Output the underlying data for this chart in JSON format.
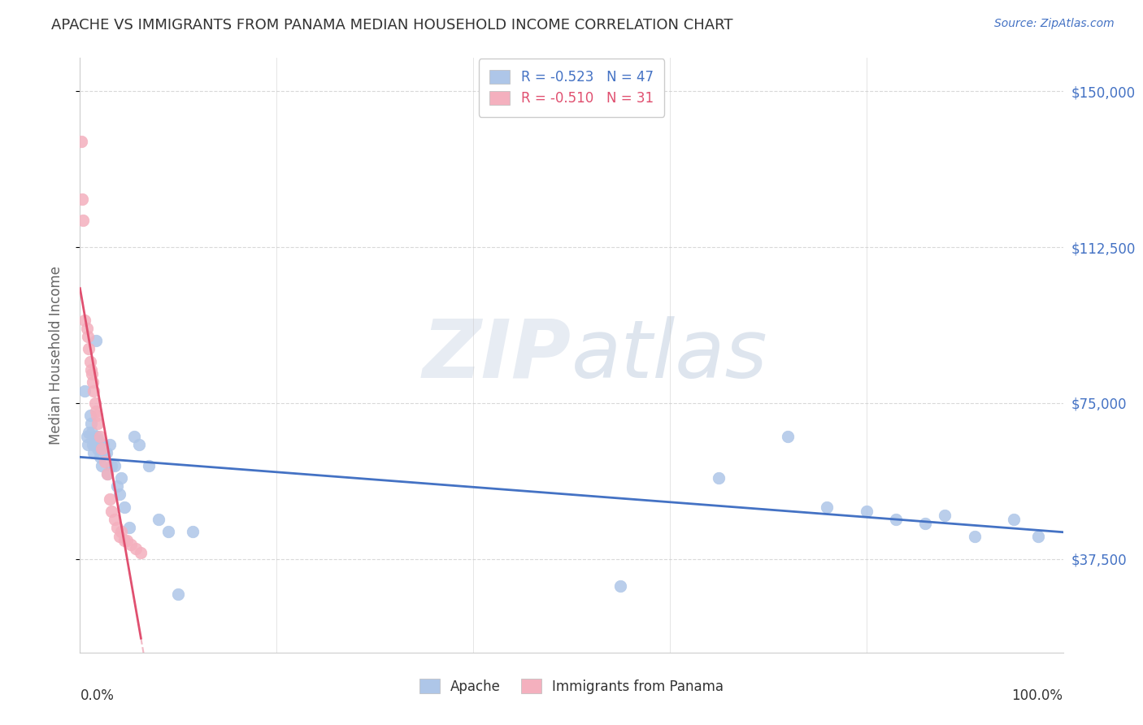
{
  "title": "APACHE VS IMMIGRANTS FROM PANAMA MEDIAN HOUSEHOLD INCOME CORRELATION CHART",
  "source": "Source: ZipAtlas.com",
  "ylabel": "Median Household Income",
  "ytick_labels": [
    "$37,500",
    "$75,000",
    "$112,500",
    "$150,000"
  ],
  "ytick_values": [
    37500,
    75000,
    112500,
    150000
  ],
  "ymin": 15000,
  "ymax": 158000,
  "xmin": 0.0,
  "xmax": 1.0,
  "apache_x": [
    0.005,
    0.007,
    0.008,
    0.009,
    0.01,
    0.011,
    0.012,
    0.013,
    0.014,
    0.015,
    0.016,
    0.017,
    0.018,
    0.019,
    0.02,
    0.021,
    0.022,
    0.024,
    0.025,
    0.027,
    0.028,
    0.03,
    0.032,
    0.035,
    0.038,
    0.04,
    0.042,
    0.045,
    0.05,
    0.055,
    0.06,
    0.07,
    0.08,
    0.09,
    0.1,
    0.115,
    0.55,
    0.65,
    0.72,
    0.76,
    0.8,
    0.83,
    0.86,
    0.88,
    0.91,
    0.95,
    0.975
  ],
  "apache_y": [
    78000,
    67000,
    65000,
    68000,
    72000,
    70000,
    68000,
    65000,
    63000,
    65000,
    90000,
    67000,
    64000,
    66000,
    62000,
    64000,
    60000,
    65000,
    63000,
    63000,
    58000,
    65000,
    60000,
    60000,
    55000,
    53000,
    57000,
    50000,
    45000,
    67000,
    65000,
    60000,
    47000,
    44000,
    29000,
    44000,
    31000,
    57000,
    67000,
    50000,
    49000,
    47000,
    46000,
    48000,
    43000,
    47000,
    43000
  ],
  "panama_x": [
    0.001,
    0.002,
    0.003,
    0.005,
    0.007,
    0.008,
    0.009,
    0.01,
    0.011,
    0.012,
    0.013,
    0.014,
    0.015,
    0.016,
    0.017,
    0.018,
    0.02,
    0.022,
    0.025,
    0.028,
    0.03,
    0.032,
    0.035,
    0.038,
    0.04,
    0.042,
    0.045,
    0.048,
    0.052,
    0.057,
    0.062
  ],
  "panama_y": [
    138000,
    124000,
    119000,
    95000,
    93000,
    91000,
    88000,
    85000,
    83000,
    82000,
    80000,
    78000,
    75000,
    73000,
    72000,
    70000,
    67000,
    64000,
    61000,
    58000,
    52000,
    49000,
    47000,
    45000,
    43000,
    44000,
    42000,
    42000,
    41000,
    40000,
    39000
  ],
  "apache_line_color": "#4472c4",
  "panama_line_color": "#e05070",
  "apache_scatter_color": "#aec6e8",
  "panama_scatter_color": "#f4b0be",
  "background_color": "#ffffff",
  "grid_color": "#d0d0d0"
}
